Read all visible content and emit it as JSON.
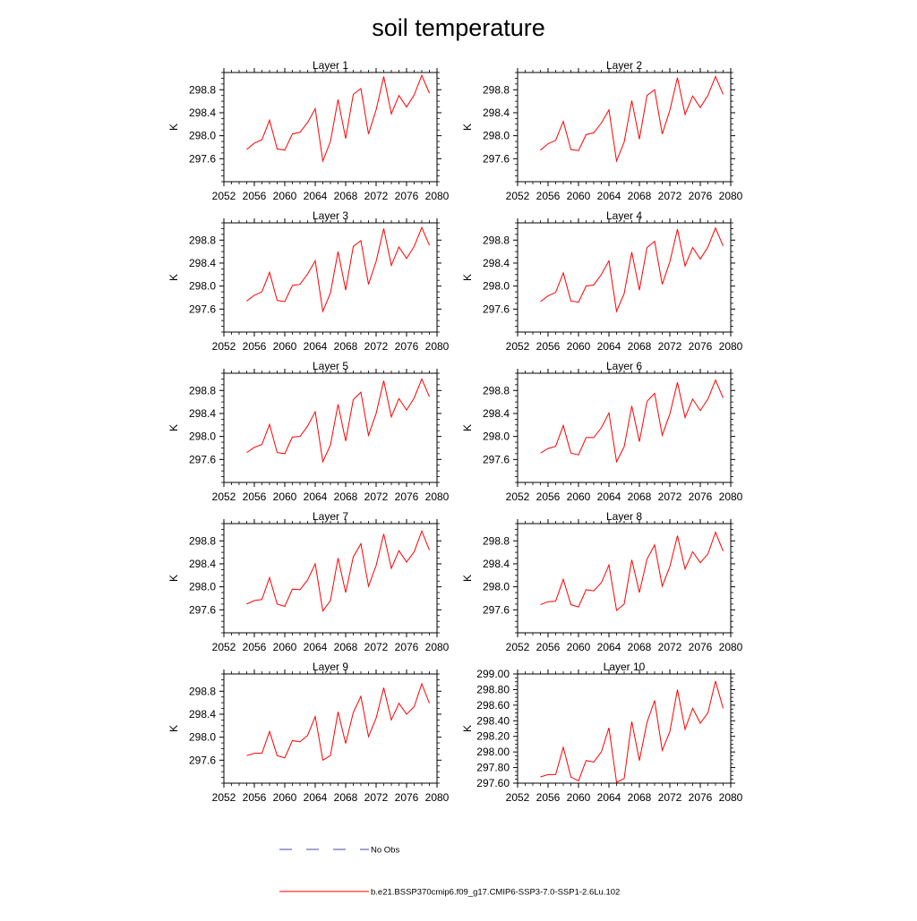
{
  "figure": {
    "title": "soil temperature"
  },
  "legend": [
    {
      "label": "No Obs",
      "color": "#4a4aa0",
      "dash": "dashed"
    },
    {
      "label": "b.e21.BSSP370cmip6.f09_g17.CMIP6-SSP3-7.0-SSP1-2.6Lu.102",
      "color": "#ff0000",
      "dash": "solid"
    }
  ],
  "chart_data": [
    {
      "type": "line",
      "title": "Layer 1",
      "xlabel": "",
      "ylabel": "K",
      "xlim": [
        2052,
        2080
      ],
      "ylim": [
        297.2,
        299.1
      ],
      "xticks": [
        2052,
        2056,
        2060,
        2064,
        2068,
        2072,
        2076,
        2080
      ],
      "xtick_labels": [
        "2052",
        "2056",
        "2060",
        "2064",
        "2068",
        "2072",
        "2076",
        "2080"
      ],
      "yticks": [
        297.6,
        298.0,
        298.4,
        298.8
      ],
      "ytick_labels": [
        "297.6",
        "298.0",
        "298.4",
        "298.8"
      ],
      "x": [
        2055,
        2056,
        2057,
        2058,
        2059,
        2060,
        2061,
        2062,
        2063,
        2064,
        2065,
        2066,
        2067,
        2068,
        2069,
        2070,
        2071,
        2072,
        2073,
        2074,
        2075,
        2076,
        2077,
        2078,
        2079
      ],
      "series": [
        {
          "name": "b.e21.BSSP370cmip6.f09_g17.CMIP6-SSP3-7.0-SSP1-2.6Lu.102",
          "color": "#ff0000",
          "values": [
            297.76,
            297.87,
            297.93,
            298.27,
            297.77,
            297.75,
            298.03,
            298.06,
            298.23,
            298.47,
            297.56,
            297.9,
            298.63,
            297.95,
            298.72,
            298.82,
            298.03,
            298.45,
            299.03,
            298.38,
            298.7,
            298.5,
            298.71,
            299.05,
            298.74
          ]
        }
      ]
    },
    {
      "type": "line",
      "title": "Layer 2",
      "xlabel": "",
      "ylabel": "K",
      "xlim": [
        2052,
        2080
      ],
      "ylim": [
        297.2,
        299.1
      ],
      "xticks": [
        2052,
        2056,
        2060,
        2064,
        2068,
        2072,
        2076,
        2080
      ],
      "xtick_labels": [
        "2052",
        "2056",
        "2060",
        "2064",
        "2068",
        "2072",
        "2076",
        "2080"
      ],
      "yticks": [
        297.6,
        298.0,
        298.4,
        298.8
      ],
      "ytick_labels": [
        "297.6",
        "298.0",
        "298.4",
        "298.8"
      ],
      "x": [
        2055,
        2056,
        2057,
        2058,
        2059,
        2060,
        2061,
        2062,
        2063,
        2064,
        2065,
        2066,
        2067,
        2068,
        2069,
        2070,
        2071,
        2072,
        2073,
        2074,
        2075,
        2076,
        2077,
        2078,
        2079
      ],
      "series": [
        {
          "name": "b.e21.BSSP370cmip6.f09_g17.CMIP6-SSP3-7.0-SSP1-2.6Lu.102",
          "color": "#ff0000",
          "values": [
            297.75,
            297.86,
            297.92,
            298.25,
            297.76,
            297.74,
            298.02,
            298.05,
            298.22,
            298.45,
            297.56,
            297.89,
            298.61,
            297.94,
            298.7,
            298.8,
            298.03,
            298.44,
            299.01,
            298.37,
            298.69,
            298.49,
            298.7,
            299.03,
            298.72
          ]
        }
      ]
    },
    {
      "type": "line",
      "title": "Layer 3",
      "xlabel": "",
      "ylabel": "K",
      "xlim": [
        2052,
        2080
      ],
      "ylim": [
        297.2,
        299.1
      ],
      "xticks": [
        2052,
        2056,
        2060,
        2064,
        2068,
        2072,
        2076,
        2080
      ],
      "xtick_labels": [
        "2052",
        "2056",
        "2060",
        "2064",
        "2068",
        "2072",
        "2076",
        "2080"
      ],
      "yticks": [
        297.6,
        298.0,
        298.4,
        298.8
      ],
      "ytick_labels": [
        "297.6",
        "298.0",
        "298.4",
        "298.8"
      ],
      "x": [
        2055,
        2056,
        2057,
        2058,
        2059,
        2060,
        2061,
        2062,
        2063,
        2064,
        2065,
        2066,
        2067,
        2068,
        2069,
        2070,
        2071,
        2072,
        2073,
        2074,
        2075,
        2076,
        2077,
        2078,
        2079
      ],
      "series": [
        {
          "name": "b.e21.BSSP370cmip6.f09_g17.CMIP6-SSP3-7.0-SSP1-2.6Lu.102",
          "color": "#ff0000",
          "values": [
            297.74,
            297.84,
            297.9,
            298.24,
            297.75,
            297.73,
            298.01,
            298.03,
            298.21,
            298.44,
            297.56,
            297.88,
            298.6,
            297.93,
            298.69,
            298.79,
            298.03,
            298.43,
            299.0,
            298.36,
            298.68,
            298.48,
            298.69,
            299.02,
            298.71
          ]
        }
      ]
    },
    {
      "type": "line",
      "title": "Layer 4",
      "xlabel": "",
      "ylabel": "K",
      "xlim": [
        2052,
        2080
      ],
      "ylim": [
        297.2,
        299.1
      ],
      "xticks": [
        2052,
        2056,
        2060,
        2064,
        2068,
        2072,
        2076,
        2080
      ],
      "xtick_labels": [
        "2052",
        "2056",
        "2060",
        "2064",
        "2068",
        "2072",
        "2076",
        "2080"
      ],
      "yticks": [
        297.6,
        298.0,
        298.4,
        298.8
      ],
      "ytick_labels": [
        "297.6",
        "298.0",
        "298.4",
        "298.8"
      ],
      "x": [
        2055,
        2056,
        2057,
        2058,
        2059,
        2060,
        2061,
        2062,
        2063,
        2064,
        2065,
        2066,
        2067,
        2068,
        2069,
        2070,
        2071,
        2072,
        2073,
        2074,
        2075,
        2076,
        2077,
        2078,
        2079
      ],
      "series": [
        {
          "name": "b.e21.BSSP370cmip6.f09_g17.CMIP6-SSP3-7.0-SSP1-2.6Lu.102",
          "color": "#ff0000",
          "values": [
            297.73,
            297.83,
            297.89,
            298.23,
            297.74,
            297.72,
            298.0,
            298.02,
            298.2,
            298.44,
            297.56,
            297.87,
            298.59,
            297.93,
            298.67,
            298.78,
            298.03,
            298.42,
            298.99,
            298.35,
            298.67,
            298.47,
            298.68,
            299.01,
            298.7
          ]
        }
      ]
    },
    {
      "type": "line",
      "title": "Layer 5",
      "xlabel": "",
      "ylabel": "K",
      "xlim": [
        2052,
        2080
      ],
      "ylim": [
        297.2,
        299.1
      ],
      "xticks": [
        2052,
        2056,
        2060,
        2064,
        2068,
        2072,
        2076,
        2080
      ],
      "xtick_labels": [
        "2052",
        "2056",
        "2060",
        "2064",
        "2068",
        "2072",
        "2076",
        "2080"
      ],
      "yticks": [
        297.6,
        298.0,
        298.4,
        298.8
      ],
      "ytick_labels": [
        "297.6",
        "298.0",
        "298.4",
        "298.8"
      ],
      "x": [
        2055,
        2056,
        2057,
        2058,
        2059,
        2060,
        2061,
        2062,
        2063,
        2064,
        2065,
        2066,
        2067,
        2068,
        2069,
        2070,
        2071,
        2072,
        2073,
        2074,
        2075,
        2076,
        2077,
        2078,
        2079
      ],
      "series": [
        {
          "name": "b.e21.BSSP370cmip6.f09_g17.CMIP6-SSP3-7.0-SSP1-2.6Lu.102",
          "color": "#ff0000",
          "values": [
            297.72,
            297.81,
            297.86,
            298.21,
            297.72,
            297.7,
            297.99,
            298.0,
            298.18,
            298.43,
            297.56,
            297.85,
            298.56,
            297.92,
            298.64,
            298.77,
            298.02,
            298.4,
            298.97,
            298.34,
            298.66,
            298.46,
            298.67,
            299.0,
            298.69
          ]
        }
      ]
    },
    {
      "type": "line",
      "title": "Layer 6",
      "xlabel": "",
      "ylabel": "K",
      "xlim": [
        2052,
        2080
      ],
      "ylim": [
        297.2,
        299.1
      ],
      "xticks": [
        2052,
        2056,
        2060,
        2064,
        2068,
        2072,
        2076,
        2080
      ],
      "xtick_labels": [
        "2052",
        "2056",
        "2060",
        "2064",
        "2068",
        "2072",
        "2076",
        "2080"
      ],
      "yticks": [
        297.6,
        298.0,
        298.4,
        298.8
      ],
      "ytick_labels": [
        "297.6",
        "298.0",
        "298.4",
        "298.8"
      ],
      "x": [
        2055,
        2056,
        2057,
        2058,
        2059,
        2060,
        2061,
        2062,
        2063,
        2064,
        2065,
        2066,
        2067,
        2068,
        2069,
        2070,
        2071,
        2072,
        2073,
        2074,
        2075,
        2076,
        2077,
        2078,
        2079
      ],
      "series": [
        {
          "name": "b.e21.BSSP370cmip6.f09_g17.CMIP6-SSP3-7.0-SSP1-2.6Lu.102",
          "color": "#ff0000",
          "values": [
            297.71,
            297.79,
            297.83,
            298.19,
            297.71,
            297.68,
            297.98,
            297.98,
            298.15,
            298.41,
            297.56,
            297.82,
            298.53,
            297.91,
            298.61,
            298.75,
            298.02,
            298.39,
            298.94,
            298.33,
            298.65,
            298.45,
            298.65,
            298.98,
            298.67
          ]
        }
      ]
    },
    {
      "type": "line",
      "title": "Layer 7",
      "xlabel": "",
      "ylabel": "K",
      "xlim": [
        2052,
        2080
      ],
      "ylim": [
        297.2,
        299.1
      ],
      "xticks": [
        2052,
        2056,
        2060,
        2064,
        2068,
        2072,
        2076,
        2080
      ],
      "xtick_labels": [
        "2052",
        "2056",
        "2060",
        "2064",
        "2068",
        "2072",
        "2076",
        "2080"
      ],
      "yticks": [
        297.6,
        298.0,
        298.4,
        298.8
      ],
      "ytick_labels": [
        "297.6",
        "298.0",
        "298.4",
        "298.8"
      ],
      "x": [
        2055,
        2056,
        2057,
        2058,
        2059,
        2060,
        2061,
        2062,
        2063,
        2064,
        2065,
        2066,
        2067,
        2068,
        2069,
        2070,
        2071,
        2072,
        2073,
        2074,
        2075,
        2076,
        2077,
        2078,
        2079
      ],
      "series": [
        {
          "name": "b.e21.BSSP370cmip6.f09_g17.CMIP6-SSP3-7.0-SSP1-2.6Lu.102",
          "color": "#ff0000",
          "values": [
            297.7,
            297.76,
            297.78,
            298.16,
            297.7,
            297.66,
            297.96,
            297.95,
            298.12,
            298.4,
            297.58,
            297.76,
            298.5,
            297.9,
            298.52,
            298.75,
            298.01,
            298.37,
            298.92,
            298.32,
            298.63,
            298.43,
            298.61,
            298.97,
            298.64
          ]
        }
      ]
    },
    {
      "type": "line",
      "title": "Layer 8",
      "xlabel": "",
      "ylabel": "K",
      "xlim": [
        2052,
        2080
      ],
      "ylim": [
        297.2,
        299.1
      ],
      "xticks": [
        2052,
        2056,
        2060,
        2064,
        2068,
        2072,
        2076,
        2080
      ],
      "xtick_labels": [
        "2052",
        "2056",
        "2060",
        "2064",
        "2068",
        "2072",
        "2076",
        "2080"
      ],
      "yticks": [
        297.6,
        298.0,
        298.4,
        298.8
      ],
      "ytick_labels": [
        "297.6",
        "298.0",
        "298.4",
        "298.8"
      ],
      "x": [
        2055,
        2056,
        2057,
        2058,
        2059,
        2060,
        2061,
        2062,
        2063,
        2064,
        2065,
        2066,
        2067,
        2068,
        2069,
        2070,
        2071,
        2072,
        2073,
        2074,
        2075,
        2076,
        2077,
        2078,
        2079
      ],
      "series": [
        {
          "name": "b.e21.BSSP370cmip6.f09_g17.CMIP6-SSP3-7.0-SSP1-2.6Lu.102",
          "color": "#ff0000",
          "values": [
            297.69,
            297.74,
            297.75,
            298.13,
            297.69,
            297.65,
            297.95,
            297.93,
            298.07,
            298.38,
            297.59,
            297.7,
            298.47,
            297.9,
            298.48,
            298.73,
            298.01,
            298.35,
            298.89,
            298.31,
            298.61,
            298.42,
            298.57,
            298.95,
            298.62
          ]
        }
      ]
    },
    {
      "type": "line",
      "title": "Layer 9",
      "xlabel": "",
      "ylabel": "K",
      "xlim": [
        2052,
        2080
      ],
      "ylim": [
        297.2,
        299.1
      ],
      "xticks": [
        2052,
        2056,
        2060,
        2064,
        2068,
        2072,
        2076,
        2080
      ],
      "xtick_labels": [
        "2052",
        "2056",
        "2060",
        "2064",
        "2068",
        "2072",
        "2076",
        "2080"
      ],
      "yticks": [
        297.6,
        298.0,
        298.4,
        298.8
      ],
      "ytick_labels": [
        "297.6",
        "298.0",
        "298.4",
        "298.8"
      ],
      "x": [
        2055,
        2056,
        2057,
        2058,
        2059,
        2060,
        2061,
        2062,
        2063,
        2064,
        2065,
        2066,
        2067,
        2068,
        2069,
        2070,
        2071,
        2072,
        2073,
        2074,
        2075,
        2076,
        2077,
        2078,
        2079
      ],
      "series": [
        {
          "name": "b.e21.BSSP370cmip6.f09_g17.CMIP6-SSP3-7.0-SSP1-2.6Lu.102",
          "color": "#ff0000",
          "values": [
            297.68,
            297.72,
            297.72,
            298.1,
            297.68,
            297.64,
            297.94,
            297.92,
            298.03,
            298.36,
            297.6,
            297.68,
            298.44,
            297.89,
            298.43,
            298.71,
            298.01,
            298.33,
            298.86,
            298.3,
            298.59,
            298.4,
            298.53,
            298.93,
            298.59
          ]
        }
      ]
    },
    {
      "type": "line",
      "title": "Layer 10",
      "xlabel": "",
      "ylabel": "K",
      "xlim": [
        2052,
        2080
      ],
      "ylim": [
        297.6,
        299.0
      ],
      "xticks": [
        2052,
        2056,
        2060,
        2064,
        2068,
        2072,
        2076,
        2080
      ],
      "xtick_labels": [
        "2052",
        "2056",
        "2060",
        "2064",
        "2068",
        "2072",
        "2076",
        "2080"
      ],
      "yticks": [
        297.6,
        297.8,
        298.0,
        298.2,
        298.4,
        298.6,
        298.8,
        299.0
      ],
      "ytick_labels": [
        "297.60",
        "297.80",
        "298.00",
        "298.20",
        "298.40",
        "298.60",
        "298.80",
        "299.00"
      ],
      "x": [
        2055,
        2056,
        2057,
        2058,
        2059,
        2060,
        2061,
        2062,
        2063,
        2064,
        2065,
        2066,
        2067,
        2068,
        2069,
        2070,
        2071,
        2072,
        2073,
        2074,
        2075,
        2076,
        2077,
        2078,
        2079
      ],
      "series": [
        {
          "name": "b.e21.BSSP370cmip6.f09_g17.CMIP6-SSP3-7.0-SSP1-2.6Lu.102",
          "color": "#ff0000",
          "values": [
            297.68,
            297.71,
            297.71,
            298.06,
            297.68,
            297.63,
            297.89,
            297.87,
            298.0,
            298.31,
            297.61,
            297.66,
            298.39,
            297.89,
            298.38,
            298.66,
            298.02,
            298.26,
            298.8,
            298.29,
            298.56,
            298.37,
            298.5,
            298.91,
            298.56
          ]
        }
      ]
    }
  ]
}
